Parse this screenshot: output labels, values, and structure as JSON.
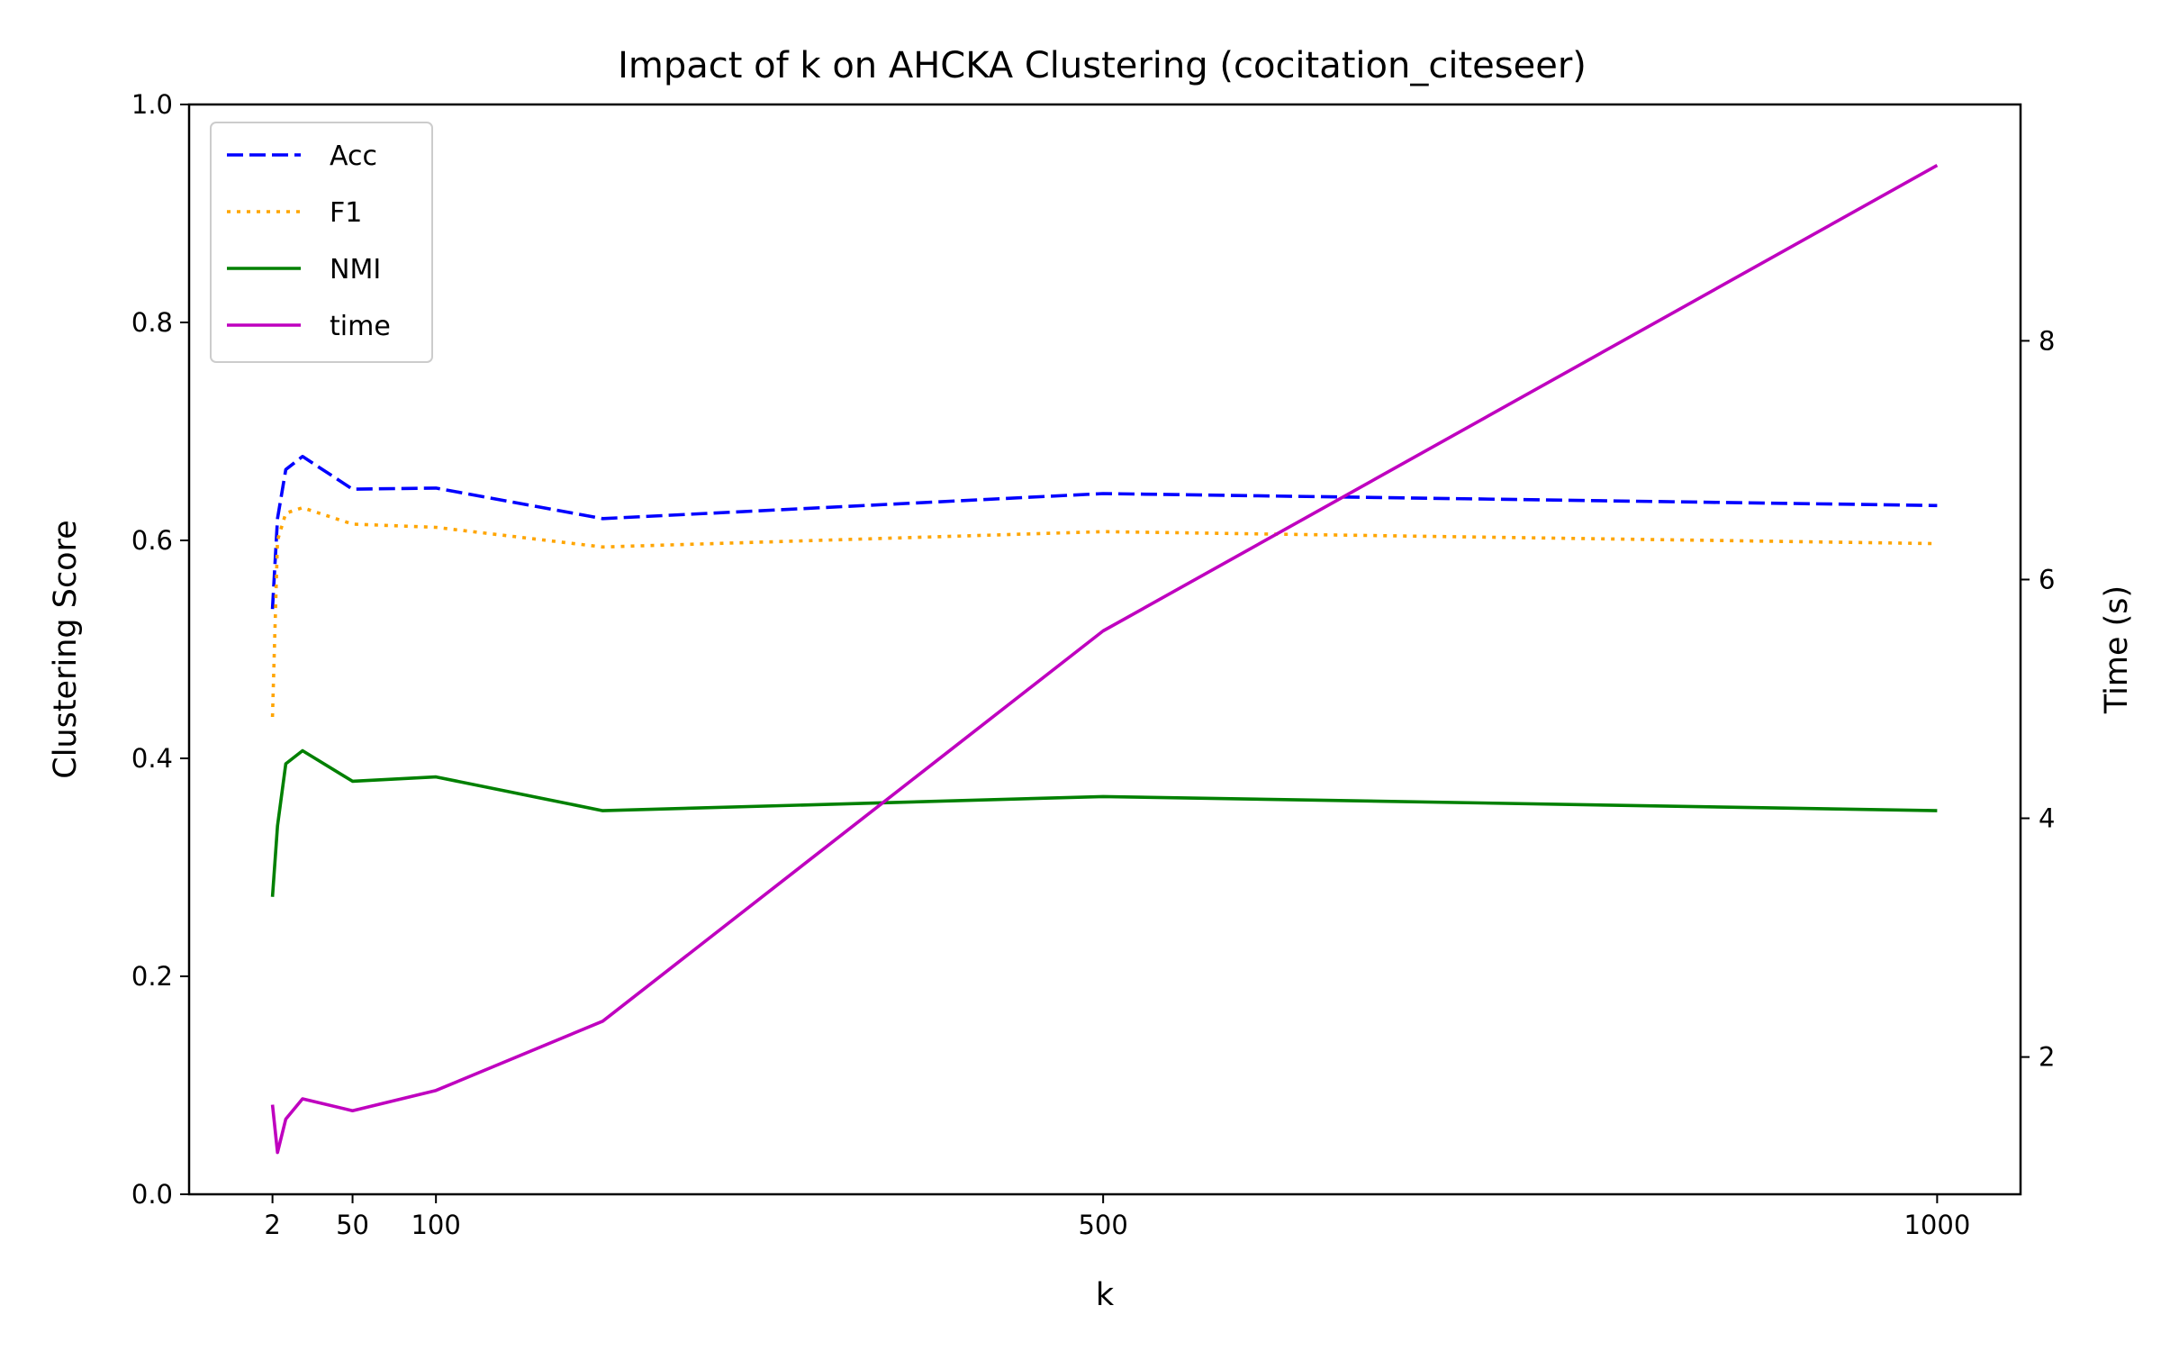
{
  "chart_data": {
    "type": "line",
    "title": "Impact of k on AHCKA Clustering (cocitation_citeseer)",
    "xlabel": "k",
    "ylabel": "Clustering Score",
    "y2label": "Time (s)",
    "x": [
      2,
      5,
      10,
      20,
      50,
      100,
      200,
      500,
      1000
    ],
    "xlim": [
      -48,
      1050
    ],
    "ylim": [
      0.0,
      1.0
    ],
    "y2lim": [
      0.85,
      9.98
    ],
    "xticks": [
      {
        "value": 2,
        "label": "2"
      },
      {
        "value": 50,
        "label": "50"
      },
      {
        "value": 100,
        "label": "100"
      },
      {
        "value": 500,
        "label": "500"
      },
      {
        "value": 1000,
        "label": "1000"
      }
    ],
    "yticks": [
      {
        "value": 0.0,
        "label": "0.0"
      },
      {
        "value": 0.2,
        "label": "0.2"
      },
      {
        "value": 0.4,
        "label": "0.4"
      },
      {
        "value": 0.6,
        "label": "0.6"
      },
      {
        "value": 0.8,
        "label": "0.8"
      },
      {
        "value": 1.0,
        "label": "1.0"
      }
    ],
    "y2ticks": [
      {
        "value": 2,
        "label": "2"
      },
      {
        "value": 4,
        "label": "4"
      },
      {
        "value": 6,
        "label": "6"
      },
      {
        "value": 8,
        "label": "8"
      }
    ],
    "series": [
      {
        "name": "Acc",
        "axis": "left",
        "color": "#0000ff",
        "style": "dashed",
        "values": [
          0.537,
          0.62,
          0.665,
          0.677,
          0.647,
          0.648,
          0.62,
          0.643,
          0.632
        ]
      },
      {
        "name": "F1",
        "axis": "left",
        "color": "#ffa500",
        "style": "dotted",
        "values": [
          0.438,
          0.6,
          0.625,
          0.63,
          0.615,
          0.612,
          0.594,
          0.608,
          0.597
        ]
      },
      {
        "name": "NMI",
        "axis": "left",
        "color": "#008000",
        "style": "solid",
        "values": [
          0.273,
          0.338,
          0.395,
          0.407,
          0.379,
          0.383,
          0.352,
          0.365,
          0.352
        ]
      },
      {
        "name": "time",
        "axis": "right",
        "color": "#bf00bf",
        "style": "solid",
        "values": [
          1.6,
          1.2,
          1.48,
          1.65,
          1.55,
          1.72,
          2.3,
          5.57,
          9.47
        ]
      }
    ],
    "legend": "upper-left",
    "grid": false,
    "y2label_color": "#bf00bf"
  }
}
